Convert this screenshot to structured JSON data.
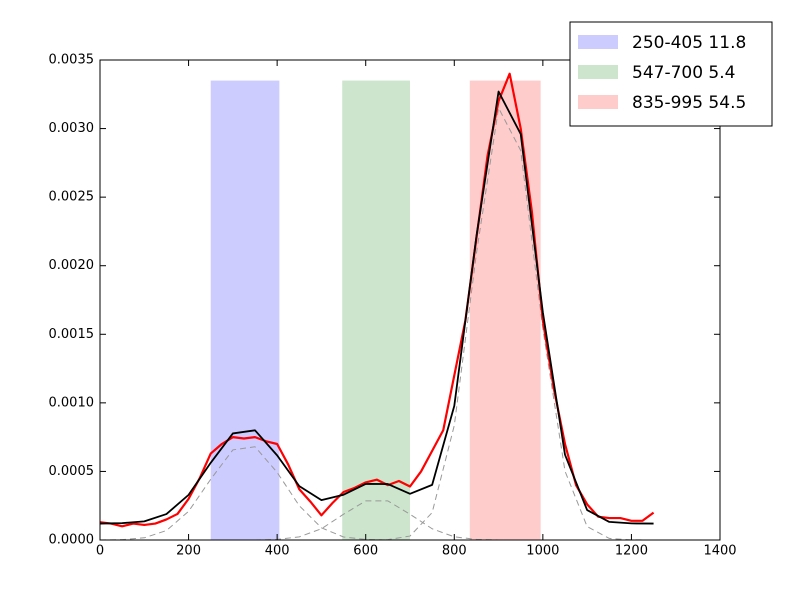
{
  "chart_data": {
    "type": "line",
    "xlim": [
      0,
      1400
    ],
    "xticks": [
      0,
      200,
      400,
      600,
      800,
      1000,
      1200,
      1400
    ],
    "ylim": [
      0,
      0.0035
    ],
    "yticks": [
      {
        "value": 0,
        "label": "0.0000"
      },
      {
        "value": 0.0005,
        "label": "0.0005"
      },
      {
        "value": 0.001,
        "label": "0.0010"
      },
      {
        "value": 0.0015,
        "label": "0.0015"
      },
      {
        "value": 0.002,
        "label": "0.0020"
      },
      {
        "value": 0.0025,
        "label": "0.0025"
      },
      {
        "value": 0.003,
        "label": "0.0030"
      },
      {
        "value": 0.0035,
        "label": "0.0035"
      }
    ],
    "legend_position": "upper right",
    "spans": [
      {
        "name": "250-405 11.8",
        "xlim": [
          250,
          405
        ],
        "top": 0.00335,
        "color": "#ccccff"
      },
      {
        "name": "547-700 5.4",
        "xlim": [
          547,
          700
        ],
        "top": 0.00335,
        "color": "#cce5cc"
      },
      {
        "name": "835-995 54.5",
        "xlim": [
          835,
          995
        ],
        "top": 0.00335,
        "color": "#ffcccc"
      }
    ],
    "series": [
      {
        "color": "#999999",
        "dashed": true,
        "width": 1,
        "x": [
          0,
          50,
          100,
          150,
          200,
          250,
          300,
          350,
          400,
          450,
          500,
          550,
          600,
          650
        ],
        "values": [
          3e-07,
          2.6e-06,
          1.6e-05,
          6.9e-05,
          0.000209,
          0.000443,
          0.000657,
          0.00068,
          0.000493,
          0.00025,
          8.9e-05,
          2.2e-05,
          3.9e-06,
          4e-07
        ]
      },
      {
        "color": "#999999",
        "dashed": true,
        "width": 1,
        "x": [
          350,
          400,
          450,
          500,
          550,
          600,
          650,
          700,
          750,
          800,
          850,
          900
        ],
        "values": [
          2e-07,
          4.4e-06,
          2.3e-05,
          8.2e-05,
          0.000188,
          0.000285,
          0.000285,
          0.000188,
          8.2e-05,
          2.3e-05,
          4.4e-06,
          2e-07
        ]
      },
      {
        "color": "#999999",
        "dashed": true,
        "width": 1,
        "x": [
          600,
          650,
          700,
          750,
          800,
          850,
          900,
          950,
          1000,
          1050,
          1100,
          1150,
          1200,
          1250
        ],
        "values": [
          1e-07,
          2.5e-06,
          2.87e-05,
          0.0002,
          0.000835,
          0.00209,
          0.00315,
          0.00284,
          0.00154,
          0.000502,
          9.79e-05,
          1.15e-05,
          8e-07,
          1e-07
        ]
      },
      {
        "color": "#ff0000",
        "dashed": false,
        "width": 2.2,
        "x": [
          0,
          25,
          50,
          75,
          100,
          125,
          150,
          175,
          200,
          225,
          250,
          275,
          300,
          325,
          350,
          375,
          400,
          425,
          450,
          475,
          500,
          525,
          550,
          575,
          600,
          625,
          650,
          675,
          700,
          725,
          750,
          775,
          800,
          825,
          850,
          875,
          900,
          925,
          950,
          975,
          1000,
          1025,
          1050,
          1075,
          1100,
          1125,
          1150,
          1175,
          1200,
          1225,
          1250
        ],
        "values": [
          0.00013,
          0.00012,
          0.0001,
          0.00012,
          0.00011,
          0.00012,
          0.00015,
          0.00019,
          0.0003,
          0.00045,
          0.00063,
          0.0007,
          0.00075,
          0.00074,
          0.00075,
          0.00072,
          0.0007,
          0.00055,
          0.00037,
          0.00028,
          0.00018,
          0.00027,
          0.00035,
          0.00038,
          0.00042,
          0.00044,
          0.0004,
          0.00043,
          0.00039,
          0.0005,
          0.00065,
          0.0008,
          0.0012,
          0.0016,
          0.0022,
          0.0028,
          0.0032,
          0.0034,
          0.003,
          0.0024,
          0.0016,
          0.0011,
          0.0007,
          0.0004,
          0.00026,
          0.00017,
          0.00016,
          0.00016,
          0.00014,
          0.00014,
          0.0002
        ]
      },
      {
        "color": "#000000",
        "dashed": false,
        "width": 1.8,
        "x": [
          0,
          50,
          100,
          150,
          200,
          250,
          300,
          350,
          400,
          450,
          500,
          550,
          600,
          650,
          700,
          750,
          800,
          850,
          900,
          950,
          1000,
          1050,
          1100,
          1150,
          1200,
          1250
        ],
        "values": [
          0.00012,
          0.000123,
          0.000136,
          0.000189,
          0.000329,
          0.000563,
          0.000777,
          0.0008,
          0.000617,
          0.000393,
          0.000291,
          0.00033,
          0.000409,
          0.000408,
          0.000337,
          0.000402,
          0.000978,
          0.002215,
          0.00327,
          0.00296,
          0.00166,
          0.000622,
          0.000218,
          0.000132,
          0.000121,
          0.00012
        ]
      }
    ]
  }
}
